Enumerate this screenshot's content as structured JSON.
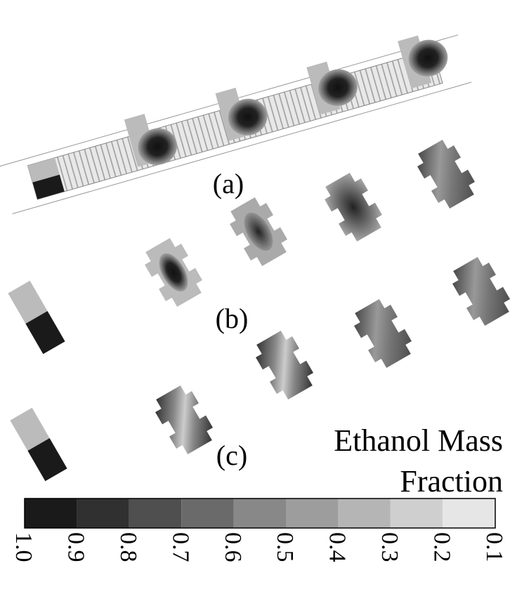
{
  "panels": {
    "a": "(a)",
    "b": "(b)",
    "c": "(c)"
  },
  "legend": {
    "title_line1": "Ethanol Mass",
    "title_line2": "Fraction",
    "ticks": [
      "1.0",
      "0.9",
      "0.8",
      "0.7",
      "0.6",
      "0.5",
      "0.4",
      "0.3",
      "0.2",
      "0.1"
    ]
  }
}
